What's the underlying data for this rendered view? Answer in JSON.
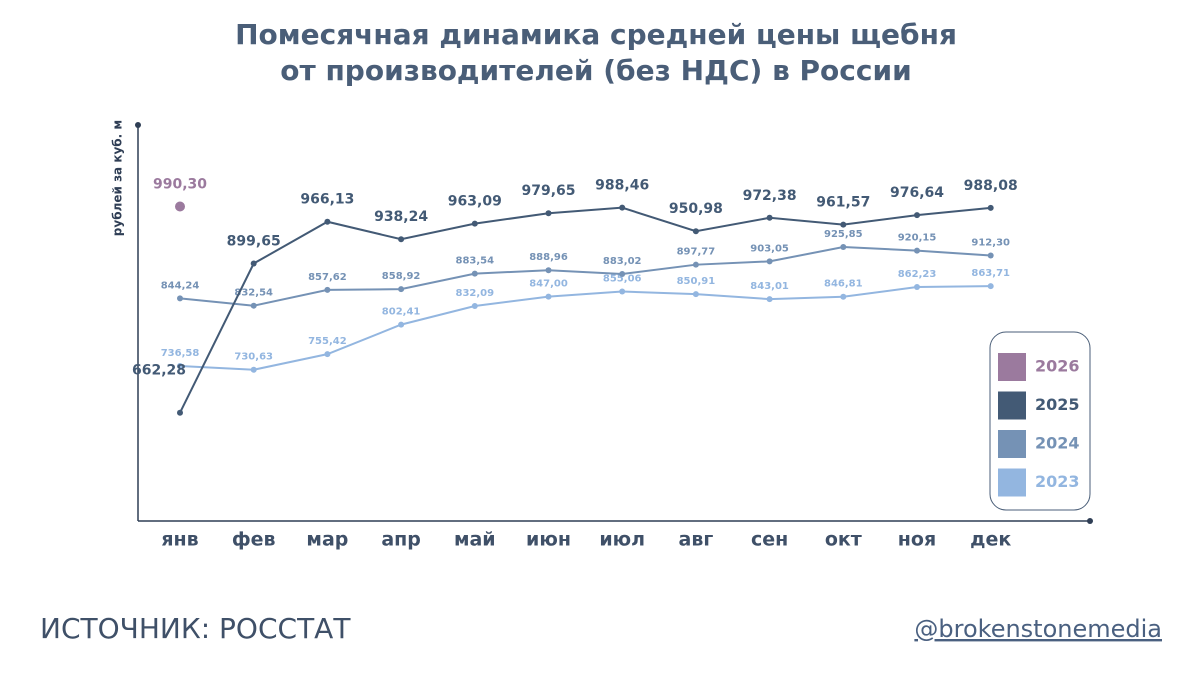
{
  "chart_data": {
    "type": "line",
    "title": [
      "Помесячная динамика средней цены щебня",
      "от производителей (без НДС) в России"
    ],
    "y_label": "рублей за куб. м",
    "categories": [
      "янв",
      "фев",
      "мар",
      "апр",
      "май",
      "июн",
      "июл",
      "авг",
      "сен",
      "окт",
      "ноя",
      "дек"
    ],
    "ylim": [
      490,
      1120
    ],
    "series": [
      {
        "name": "2026",
        "color": "#9b7a9e",
        "values": [
          990.3,
          null,
          null,
          null,
          null,
          null,
          null,
          null,
          null,
          null,
          null,
          null
        ],
        "value_labels": [
          "990,30",
          null,
          null,
          null,
          null,
          null,
          null,
          null,
          null,
          null,
          null,
          null
        ]
      },
      {
        "name": "2025",
        "color": "#435a75",
        "values": [
          662.28,
          899.65,
          966.13,
          938.24,
          963.09,
          979.65,
          988.46,
          950.98,
          972.38,
          961.57,
          976.64,
          988.08
        ],
        "value_labels": [
          "662,28",
          "899,65",
          "966,13",
          "938,24",
          "963,09",
          "979,65",
          "988,46",
          "950,98",
          "972,38",
          "961,57",
          "976,64",
          "988,08"
        ]
      },
      {
        "name": "2024",
        "color": "#7592b5",
        "values": [
          844.24,
          832.54,
          857.62,
          858.92,
          883.54,
          888.96,
          883.02,
          897.77,
          903.05,
          925.85,
          920.15,
          912.3
        ],
        "value_labels": [
          "844,24",
          "832,54",
          "857,62",
          "858,92",
          "883,54",
          "888,96",
          "883,02",
          "897,77",
          "903,05",
          "925,85",
          "920,15",
          "912,30"
        ]
      },
      {
        "name": "2023",
        "color": "#93b6e0",
        "values": [
          736.58,
          730.63,
          755.42,
          802.41,
          832.09,
          847.0,
          855.06,
          850.91,
          843.01,
          846.81,
          862.23,
          863.71
        ],
        "value_labels": [
          "736,58",
          "730,63",
          "755,42",
          "802,41",
          "832,09",
          "847,00",
          "855,06",
          "850,91",
          "843,01",
          "846,81",
          "862,23",
          "863,71"
        ]
      }
    ],
    "source": "ИСТОЧНИК: РОССТАТ",
    "handle": "@brokenstonemedia"
  }
}
